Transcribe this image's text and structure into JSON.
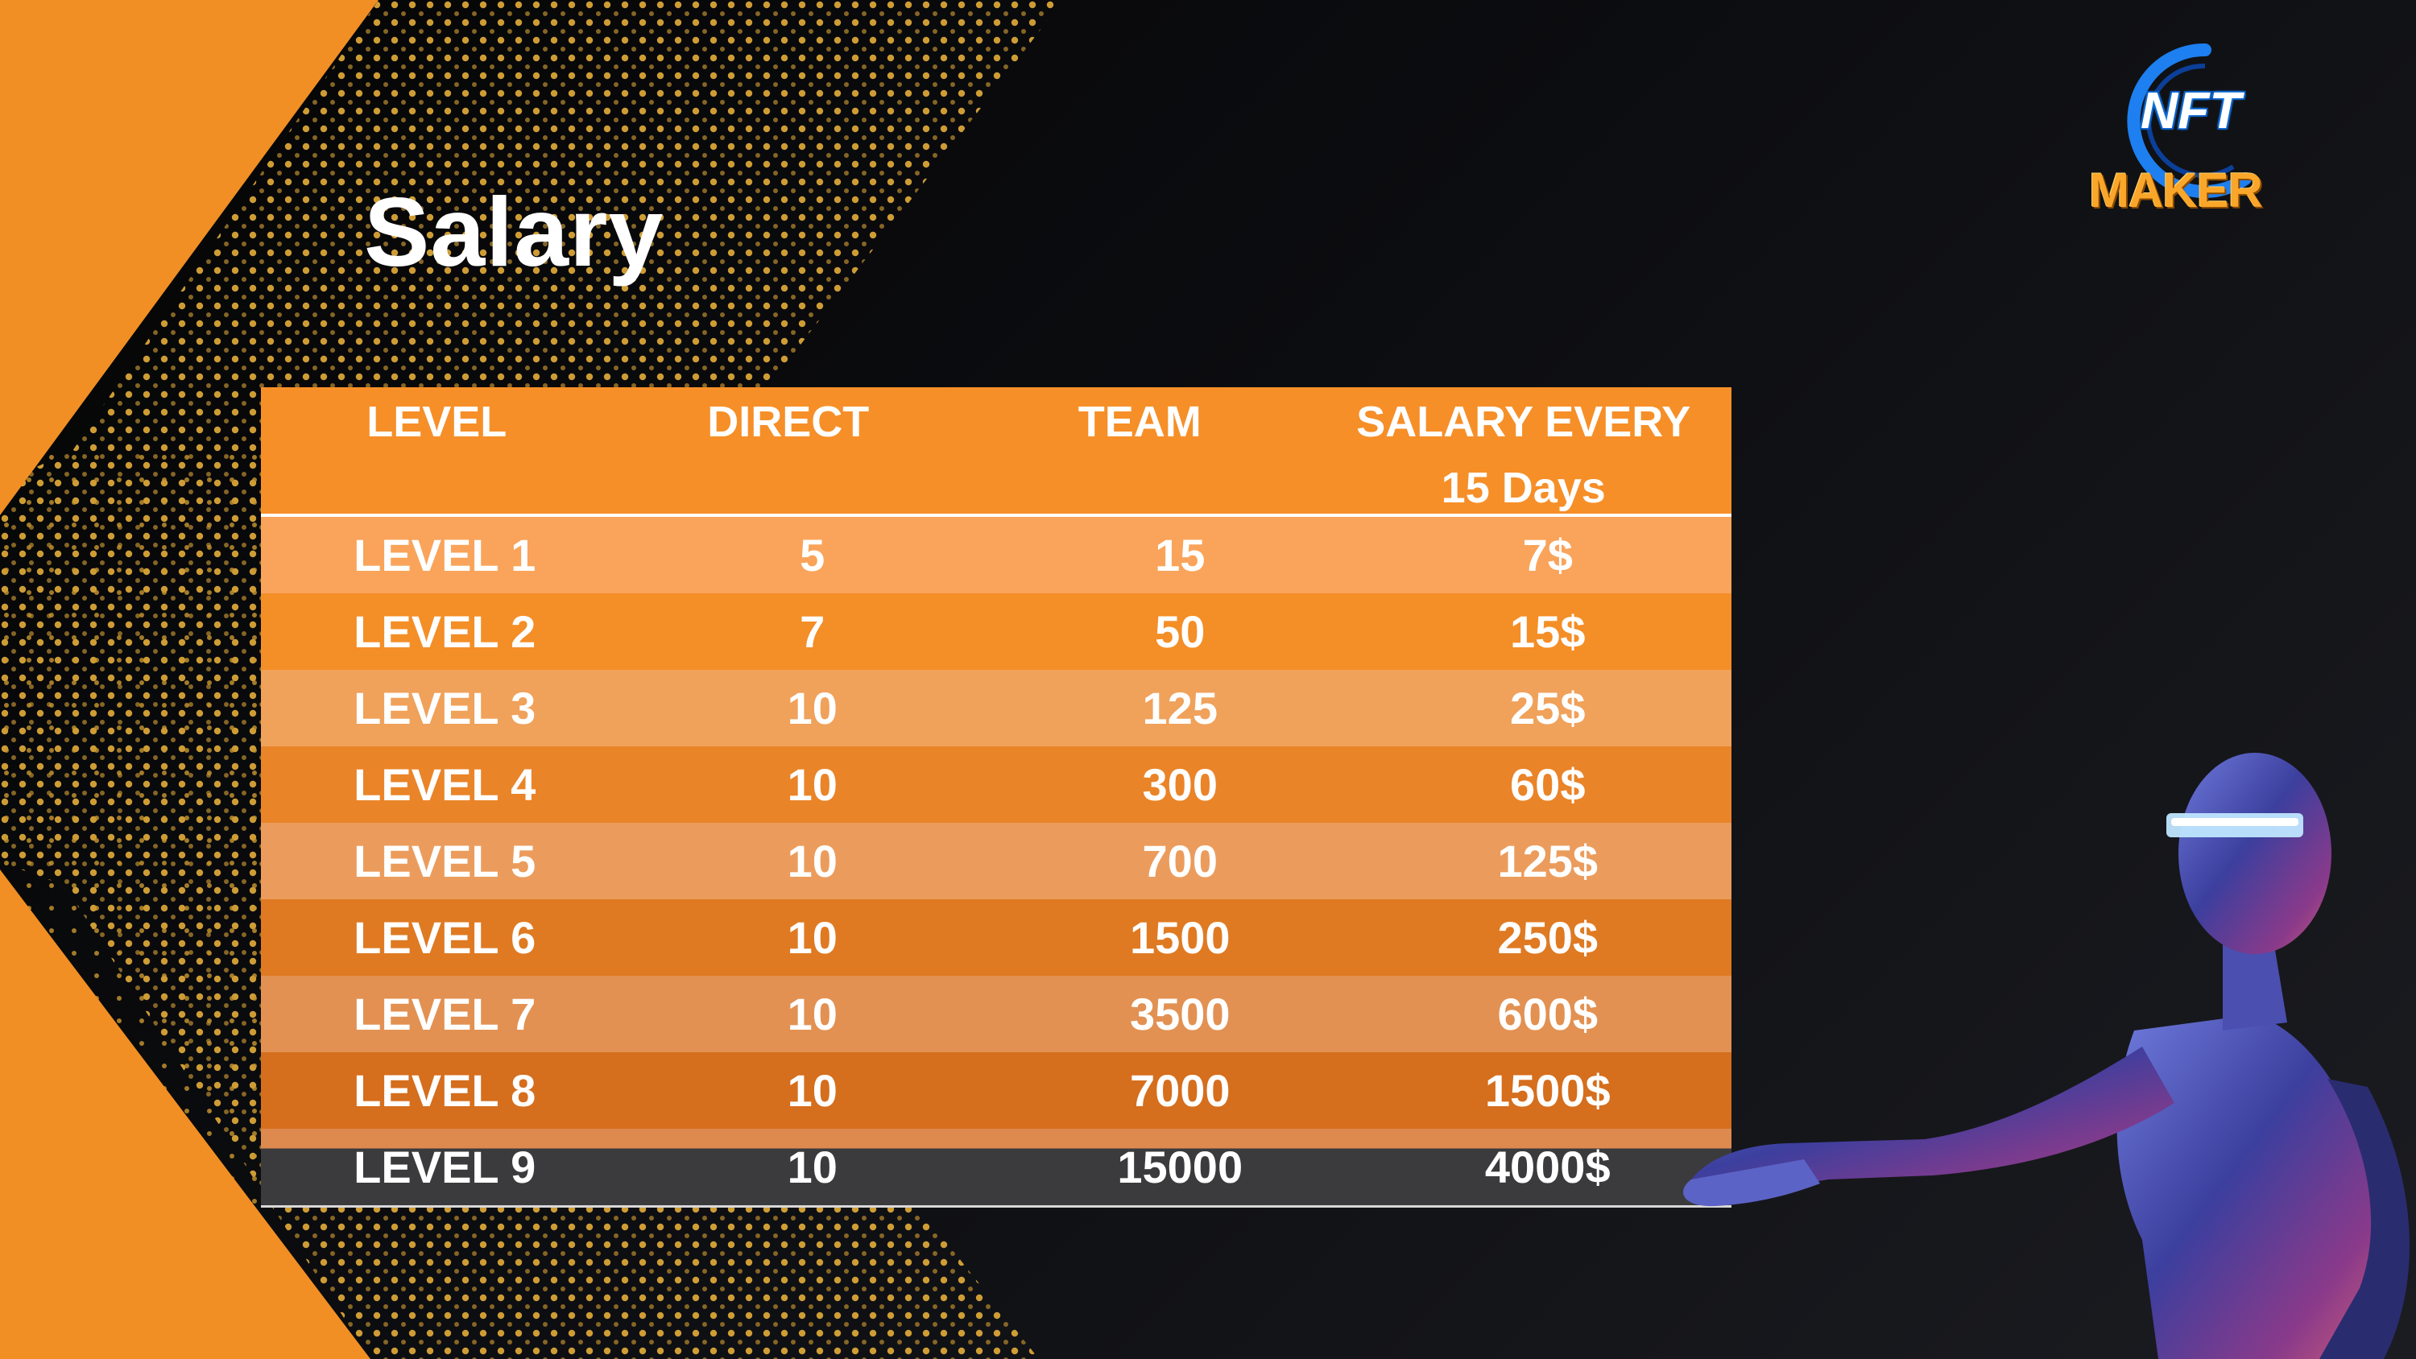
{
  "slide": {
    "title": "Salary"
  },
  "logo": {
    "line1": "NFT",
    "line2": "MAKER"
  },
  "table": {
    "headers": [
      "LEVEL",
      "DIRECT",
      "TEAM",
      "SALARY EVERY 15 Days"
    ],
    "rows": [
      [
        "LEVEL 1",
        "5",
        "15",
        "7$"
      ],
      [
        "LEVEL 2",
        "7",
        "50",
        "15$"
      ],
      [
        "LEVEL 3",
        "10",
        "125",
        "25$"
      ],
      [
        "LEVEL 4",
        "10",
        "300",
        "60$"
      ],
      [
        "LEVEL 5",
        "10",
        "700",
        "125$"
      ],
      [
        "LEVEL 6",
        "10",
        "1500",
        "250$"
      ],
      [
        "LEVEL 7",
        "10",
        "3500",
        "600$"
      ],
      [
        "LEVEL 8",
        "10",
        "7000",
        "1500$"
      ],
      [
        "LEVEL 9",
        "10",
        "15000",
        "4000$"
      ]
    ]
  },
  "colors": {
    "accent_orange": "#f68f28",
    "background_dark": "#0c0d10"
  },
  "decorations": {
    "figure": "robot-woman-illustration",
    "pattern": "gold-dot-pattern"
  }
}
